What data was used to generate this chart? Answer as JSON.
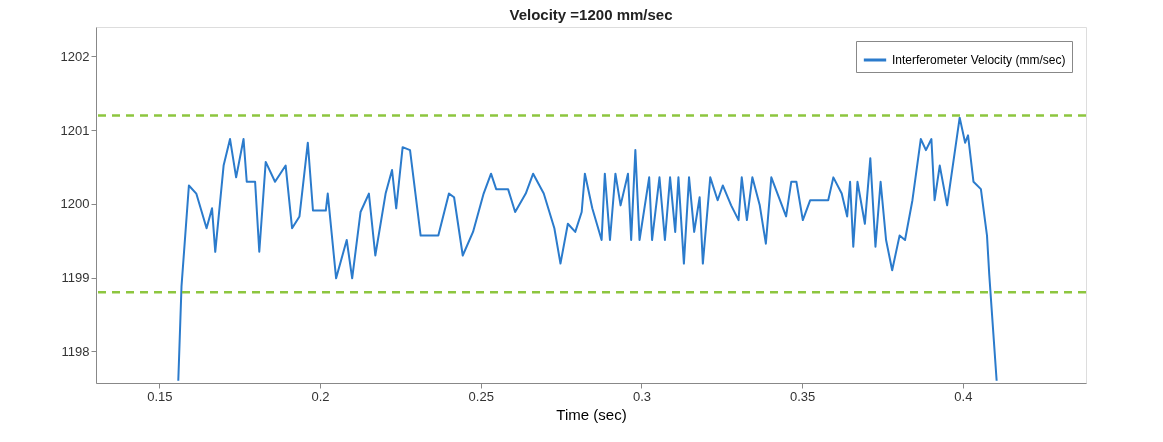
{
  "chart_data": {
    "type": "line",
    "title": "Velocity =1200 mm/sec",
    "xlabel": "Time (sec)",
    "xlim": [
      0.1303,
      0.4383
    ],
    "ylim": [
      1197.57,
      1202.4
    ],
    "xticks": [
      0.15,
      0.2,
      0.25,
      0.3,
      0.35,
      0.4
    ],
    "yticks": [
      1198,
      1199,
      1200,
      1201,
      1202
    ],
    "grid": false,
    "legend": "top right",
    "marker": "none",
    "ref_lines": [
      {
        "axis": "y",
        "value": 1201.2,
        "color": "#8dc63f",
        "line_style": "dashed"
      },
      {
        "axis": "y",
        "value": 1198.8,
        "color": "#8dc63f",
        "line_style": "dashed"
      }
    ],
    "series": [
      {
        "name": "Interferometer Velocity (mm/sec)",
        "color": "#2b7bcc",
        "line_style": "solid",
        "x": [
          0.1559,
          0.1569,
          0.1592,
          0.1615,
          0.1647,
          0.1664,
          0.1674,
          0.17,
          0.172,
          0.1739,
          0.1762,
          0.1772,
          0.1798,
          0.1811,
          0.1831,
          0.186,
          0.1893,
          0.1913,
          0.1936,
          0.1962,
          0.1978,
          0.2018,
          0.2024,
          0.205,
          0.2083,
          0.21,
          0.2126,
          0.2152,
          0.2172,
          0.2204,
          0.2224,
          0.2237,
          0.2257,
          0.228,
          0.2313,
          0.2339,
          0.2368,
          0.2401,
          0.2417,
          0.2444,
          0.2476,
          0.2509,
          0.2532,
          0.2548,
          0.2585,
          0.2607,
          0.264,
          0.2663,
          0.2696,
          0.2729,
          0.2748,
          0.2771,
          0.2794,
          0.2814,
          0.2824,
          0.2847,
          0.2876,
          0.2886,
          0.2902,
          0.2919,
          0.2935,
          0.2958,
          0.2968,
          0.2981,
          0.2994,
          0.3024,
          0.3033,
          0.3056,
          0.3073,
          0.3089,
          0.3105,
          0.3115,
          0.3132,
          0.3148,
          0.3164,
          0.3181,
          0.3191,
          0.3214,
          0.3237,
          0.3253,
          0.3279,
          0.3302,
          0.3312,
          0.3328,
          0.3345,
          0.3368,
          0.3387,
          0.3404,
          0.345,
          0.3466,
          0.3482,
          0.3502,
          0.3525,
          0.3581,
          0.3597,
          0.3623,
          0.364,
          0.3649,
          0.3659,
          0.3672,
          0.3695,
          0.3712,
          0.3728,
          0.3744,
          0.3761,
          0.378,
          0.3803,
          0.382,
          0.3843,
          0.3869,
          0.3885,
          0.3902,
          0.3912,
          0.3928,
          0.3951,
          0.399,
          0.4007,
          0.4016,
          0.4033,
          0.4056,
          0.4075,
          0.4082,
          0.4105
        ],
        "values": [
          1197.6,
          1198.88,
          1200.25,
          1200.14,
          1199.67,
          1199.94,
          1199.35,
          1200.52,
          1200.88,
          1200.36,
          1200.88,
          1200.3,
          1200.3,
          1199.35,
          1200.57,
          1200.3,
          1200.52,
          1199.67,
          1199.83,
          1200.83,
          1199.91,
          1199.91,
          1200.14,
          1198.99,
          1199.51,
          1198.99,
          1199.89,
          1200.14,
          1199.3,
          1200.14,
          1200.46,
          1199.94,
          1200.77,
          1200.73,
          1199.57,
          1199.57,
          1199.57,
          1200.14,
          1200.09,
          1199.3,
          1199.62,
          1200.14,
          1200.41,
          1200.2,
          1200.2,
          1199.89,
          1200.14,
          1200.41,
          1200.14,
          1199.67,
          1199.19,
          1199.73,
          1199.62,
          1199.89,
          1200.41,
          1199.94,
          1199.51,
          1200.41,
          1199.51,
          1200.41,
          1199.98,
          1200.41,
          1199.51,
          1200.73,
          1199.51,
          1200.36,
          1199.51,
          1200.36,
          1199.51,
          1200.36,
          1199.62,
          1200.36,
          1199.19,
          1200.36,
          1199.62,
          1200.09,
          1199.19,
          1200.36,
          1200.05,
          1200.25,
          1199.98,
          1199.78,
          1200.36,
          1199.78,
          1200.36,
          1199.98,
          1199.46,
          1200.36,
          1199.83,
          1200.3,
          1200.3,
          1199.78,
          1200.05,
          1200.05,
          1200.36,
          1200.14,
          1199.83,
          1200.3,
          1199.42,
          1200.3,
          1199.73,
          1200.62,
          1199.42,
          1200.3,
          1199.51,
          1199.1,
          1199.57,
          1199.51,
          1200.05,
          1200.88,
          1200.73,
          1200.88,
          1200.05,
          1200.52,
          1199.98,
          1201.17,
          1200.83,
          1200.93,
          1200.3,
          1200.2,
          1199.57,
          1199.04,
          1197.6
        ]
      }
    ]
  }
}
